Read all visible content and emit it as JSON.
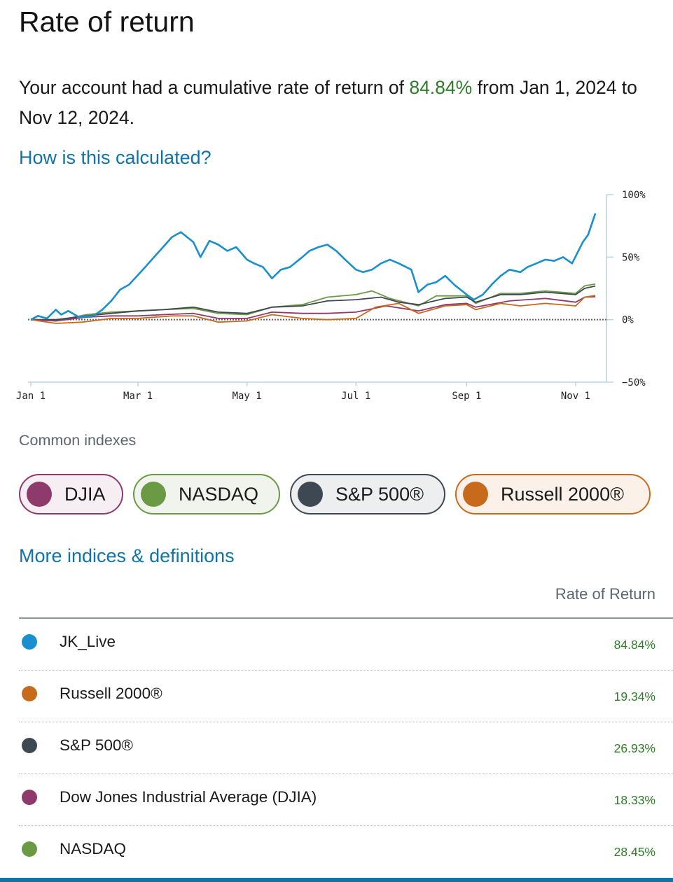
{
  "header": {
    "title": "Rate of return",
    "summary_prefix": "Your account had a cumulative rate of return of ",
    "summary_pct": "84.84%",
    "summary_suffix": " from Jan 1, 2024 to Nov 12, 2024."
  },
  "links": {
    "how_calculated": "How is this calculated?",
    "more_indices": "More indices & definitions"
  },
  "colors": {
    "account": "#1a8fcf",
    "djia": "#8e3a6c",
    "nasdaq": "#6a9a44",
    "sp500": "#3e4852",
    "russell": "#c76a1c",
    "positive": "#2f7d2a",
    "link": "#1273a6"
  },
  "chart_data": {
    "type": "line",
    "x_ticks": [
      "Jan 1",
      "Mar 1",
      "May 1",
      "Jul 1",
      "Sep 1",
      "Nov 1"
    ],
    "y_ticks": [
      "100%",
      "50%",
      "0%",
      "−50%"
    ],
    "ylim": [
      -50,
      100
    ],
    "x_range": [
      "2024-01-01",
      "2024-11-12"
    ],
    "zero_line": "dotted",
    "series": [
      {
        "name": "JK_Live",
        "color": "#1a8fcf",
        "points": [
          [
            "2024-01-01",
            0
          ],
          [
            "2024-01-05",
            3
          ],
          [
            "2024-01-10",
            1
          ],
          [
            "2024-01-15",
            8
          ],
          [
            "2024-01-18",
            4
          ],
          [
            "2024-01-22",
            7
          ],
          [
            "2024-01-28",
            2
          ],
          [
            "2024-02-05",
            3
          ],
          [
            "2024-02-10",
            8
          ],
          [
            "2024-02-15",
            15
          ],
          [
            "2024-02-20",
            24
          ],
          [
            "2024-02-25",
            28
          ],
          [
            "2024-03-05",
            42
          ],
          [
            "2024-03-10",
            50
          ],
          [
            "2024-03-15",
            58
          ],
          [
            "2024-03-20",
            66
          ],
          [
            "2024-03-25",
            70
          ],
          [
            "2024-04-01",
            62
          ],
          [
            "2024-04-05",
            50
          ],
          [
            "2024-04-10",
            63
          ],
          [
            "2024-04-15",
            60
          ],
          [
            "2024-04-20",
            55
          ],
          [
            "2024-04-25",
            58
          ],
          [
            "2024-05-01",
            48
          ],
          [
            "2024-05-05",
            45
          ],
          [
            "2024-05-10",
            42
          ],
          [
            "2024-05-15",
            33
          ],
          [
            "2024-05-20",
            40
          ],
          [
            "2024-05-25",
            42
          ],
          [
            "2024-06-01",
            50
          ],
          [
            "2024-06-05",
            55
          ],
          [
            "2024-06-10",
            58
          ],
          [
            "2024-06-15",
            60
          ],
          [
            "2024-06-20",
            55
          ],
          [
            "2024-06-25",
            48
          ],
          [
            "2024-07-01",
            40
          ],
          [
            "2024-07-05",
            38
          ],
          [
            "2024-07-10",
            40
          ],
          [
            "2024-07-15",
            45
          ],
          [
            "2024-07-20",
            48
          ],
          [
            "2024-07-25",
            45
          ],
          [
            "2024-08-01",
            40
          ],
          [
            "2024-08-05",
            22
          ],
          [
            "2024-08-10",
            28
          ],
          [
            "2024-08-15",
            30
          ],
          [
            "2024-08-20",
            35
          ],
          [
            "2024-08-25",
            28
          ],
          [
            "2024-09-01",
            20
          ],
          [
            "2024-09-05",
            16
          ],
          [
            "2024-09-10",
            20
          ],
          [
            "2024-09-15",
            28
          ],
          [
            "2024-09-20",
            35
          ],
          [
            "2024-09-25",
            40
          ],
          [
            "2024-10-01",
            38
          ],
          [
            "2024-10-05",
            42
          ],
          [
            "2024-10-10",
            45
          ],
          [
            "2024-10-15",
            48
          ],
          [
            "2024-10-20",
            47
          ],
          [
            "2024-10-25",
            50
          ],
          [
            "2024-10-30",
            45
          ],
          [
            "2024-11-05",
            62
          ],
          [
            "2024-11-08",
            68
          ],
          [
            "2024-11-12",
            85
          ]
        ]
      },
      {
        "name": "NASDAQ",
        "color": "#6a9a44",
        "points": [
          [
            "2024-01-01",
            0
          ],
          [
            "2024-01-15",
            -1
          ],
          [
            "2024-02-01",
            4
          ],
          [
            "2024-02-15",
            6
          ],
          [
            "2024-03-01",
            7
          ],
          [
            "2024-03-15",
            8
          ],
          [
            "2024-04-01",
            9
          ],
          [
            "2024-04-15",
            5
          ],
          [
            "2024-05-01",
            4
          ],
          [
            "2024-05-15",
            10
          ],
          [
            "2024-06-01",
            12
          ],
          [
            "2024-06-15",
            18
          ],
          [
            "2024-07-01",
            20
          ],
          [
            "2024-07-10",
            23
          ],
          [
            "2024-07-20",
            17
          ],
          [
            "2024-08-05",
            11
          ],
          [
            "2024-08-15",
            19
          ],
          [
            "2024-09-01",
            19
          ],
          [
            "2024-09-06",
            13
          ],
          [
            "2024-09-20",
            21
          ],
          [
            "2024-10-01",
            21
          ],
          [
            "2024-10-15",
            23
          ],
          [
            "2024-11-01",
            21
          ],
          [
            "2024-11-06",
            27
          ],
          [
            "2024-11-12",
            28.45
          ]
        ]
      },
      {
        "name": "S&P 500®",
        "color": "#3e4852",
        "points": [
          [
            "2024-01-01",
            0
          ],
          [
            "2024-01-15",
            0
          ],
          [
            "2024-02-01",
            3
          ],
          [
            "2024-02-15",
            5
          ],
          [
            "2024-03-01",
            7
          ],
          [
            "2024-03-15",
            8
          ],
          [
            "2024-04-01",
            10
          ],
          [
            "2024-04-15",
            6
          ],
          [
            "2024-05-01",
            5
          ],
          [
            "2024-05-15",
            10
          ],
          [
            "2024-06-01",
            11
          ],
          [
            "2024-06-15",
            15
          ],
          [
            "2024-07-01",
            16
          ],
          [
            "2024-07-15",
            18
          ],
          [
            "2024-07-25",
            14
          ],
          [
            "2024-08-05",
            12
          ],
          [
            "2024-08-20",
            17
          ],
          [
            "2024-09-01",
            18
          ],
          [
            "2024-09-06",
            14
          ],
          [
            "2024-09-20",
            20
          ],
          [
            "2024-10-01",
            20
          ],
          [
            "2024-10-15",
            22
          ],
          [
            "2024-11-01",
            20
          ],
          [
            "2024-11-06",
            25
          ],
          [
            "2024-11-12",
            26.93
          ]
        ]
      },
      {
        "name": "Dow Jones Industrial Average (DJIA)",
        "color": "#8e3a6c",
        "points": [
          [
            "2024-01-01",
            0
          ],
          [
            "2024-01-15",
            -1
          ],
          [
            "2024-02-01",
            2
          ],
          [
            "2024-02-15",
            3
          ],
          [
            "2024-03-01",
            3
          ],
          [
            "2024-03-15",
            4
          ],
          [
            "2024-04-01",
            5
          ],
          [
            "2024-04-15",
            1
          ],
          [
            "2024-05-01",
            1
          ],
          [
            "2024-05-15",
            6
          ],
          [
            "2024-06-01",
            5
          ],
          [
            "2024-06-15",
            5
          ],
          [
            "2024-07-01",
            6
          ],
          [
            "2024-07-18",
            11
          ],
          [
            "2024-08-05",
            7
          ],
          [
            "2024-08-20",
            12
          ],
          [
            "2024-09-01",
            13
          ],
          [
            "2024-09-06",
            10
          ],
          [
            "2024-09-25",
            15
          ],
          [
            "2024-10-15",
            17
          ],
          [
            "2024-11-01",
            14
          ],
          [
            "2024-11-06",
            18
          ],
          [
            "2024-11-12",
            18.33
          ]
        ]
      },
      {
        "name": "Russell 2000®",
        "color": "#c76a1c",
        "points": [
          [
            "2024-01-01",
            0
          ],
          [
            "2024-01-15",
            -3
          ],
          [
            "2024-01-30",
            -2
          ],
          [
            "2024-02-15",
            1
          ],
          [
            "2024-03-01",
            1
          ],
          [
            "2024-03-20",
            3
          ],
          [
            "2024-04-01",
            3
          ],
          [
            "2024-04-15",
            -2
          ],
          [
            "2024-05-01",
            -1
          ],
          [
            "2024-05-15",
            4
          ],
          [
            "2024-06-01",
            1
          ],
          [
            "2024-06-15",
            0
          ],
          [
            "2024-07-01",
            1
          ],
          [
            "2024-07-12",
            10
          ],
          [
            "2024-07-25",
            13
          ],
          [
            "2024-08-05",
            5
          ],
          [
            "2024-08-20",
            11
          ],
          [
            "2024-09-01",
            12
          ],
          [
            "2024-09-06",
            8
          ],
          [
            "2024-09-20",
            13
          ],
          [
            "2024-10-01",
            11
          ],
          [
            "2024-10-15",
            13
          ],
          [
            "2024-11-01",
            11
          ],
          [
            "2024-11-06",
            18
          ],
          [
            "2024-11-12",
            19.34
          ]
        ]
      }
    ]
  },
  "indexes": {
    "label": "Common indexes",
    "pills": [
      {
        "label": "DJIA",
        "color": "#8e3a6c",
        "bg": "#f7eef3"
      },
      {
        "label": "NASDAQ",
        "color": "#6a9a44",
        "bg": "#f0f4ec"
      },
      {
        "label": "S&P 500®",
        "color": "#3e4852",
        "bg": "#eceef0"
      },
      {
        "label": "Russell 2000®",
        "color": "#c76a1c",
        "bg": "#fbf1e8"
      }
    ]
  },
  "table": {
    "header": "Rate of Return",
    "rows": [
      {
        "name": "JK_Live",
        "value": "84.84%",
        "color": "#1a8fcf"
      },
      {
        "name": "Russell 2000®",
        "value": "19.34%",
        "color": "#c76a1c"
      },
      {
        "name": "S&P 500®",
        "value": "26.93%",
        "color": "#3e4852"
      },
      {
        "name": "Dow Jones Industrial Average (DJIA)",
        "value": "18.33%",
        "color": "#8e3a6c"
      },
      {
        "name": "NASDAQ",
        "value": "28.45%",
        "color": "#6a9a44"
      }
    ]
  }
}
